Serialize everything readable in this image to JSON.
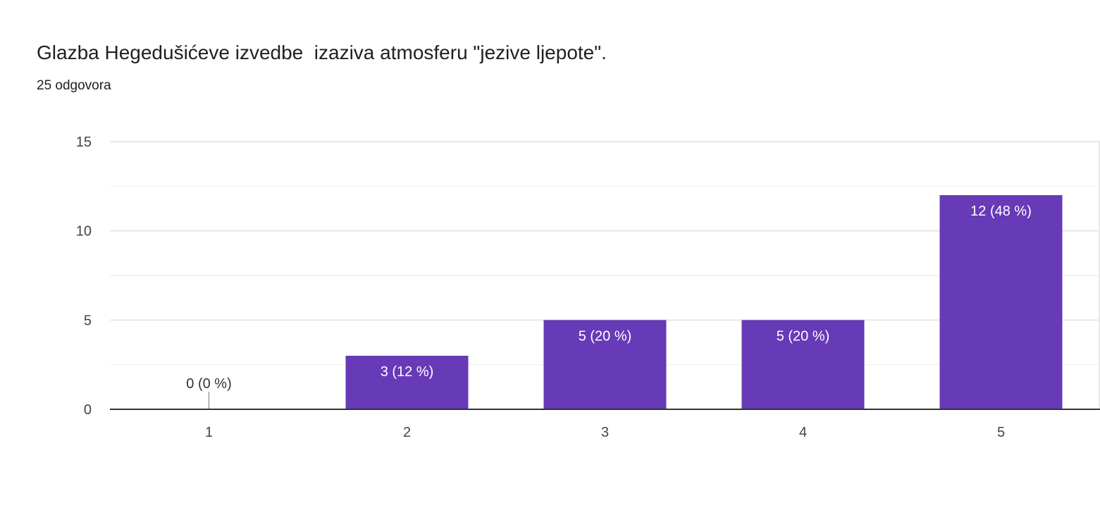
{
  "header": {
    "title": "Glazba Hegedušićeve izvedbe  izaziva atmosferu \"jezive ljepote\".",
    "response_count": "25 odgovora"
  },
  "chart_data": {
    "type": "bar",
    "categories": [
      "1",
      "2",
      "3",
      "4",
      "5"
    ],
    "values": [
      0,
      3,
      5,
      5,
      12
    ],
    "data_labels": [
      "0 (0 %)",
      "3 (12 %)",
      "5 (20 %)",
      "5 (20 %)",
      "12 (48 %)"
    ],
    "ylim": [
      0,
      15
    ],
    "yticks": [
      0,
      5,
      10,
      15
    ],
    "grid": true,
    "colors": {
      "bar": "#673ab7",
      "grid": "#e8e8e8",
      "axis": "#333333",
      "label_inside": "#ffffff",
      "label_outside": "#333333"
    }
  }
}
